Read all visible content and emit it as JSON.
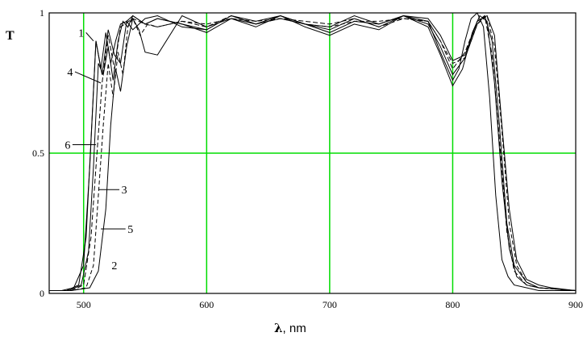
{
  "chart_data": {
    "type": "line",
    "title": "",
    "ylabel": "T",
    "xlabel_symbol": "λ",
    "xlabel_unit": ", nm",
    "xlim": [
      472,
      900
    ],
    "ylim": [
      0,
      1
    ],
    "x_ticks": [
      500,
      600,
      700,
      800,
      900
    ],
    "y_ticks": [
      0,
      0.5,
      1
    ],
    "y_tick_labels": [
      "0",
      "0.5",
      "1"
    ],
    "grid": true,
    "grid_color": "#00dd00",
    "line_color": "#000000",
    "series": [
      {
        "name": "1",
        "x": [
          472,
          482,
          492,
          500,
          505,
          510,
          515,
          520,
          525,
          530,
          535,
          540,
          550,
          560,
          570,
          580,
          600,
          620,
          640,
          660,
          680,
          700,
          720,
          740,
          760,
          780,
          790,
          800,
          805,
          810,
          815,
          820,
          825,
          830,
          835,
          840,
          845,
          850,
          860,
          870,
          880,
          900
        ],
        "y": [
          0.01,
          0.01,
          0.02,
          0.1,
          0.45,
          0.9,
          0.78,
          0.94,
          0.85,
          0.82,
          0.97,
          0.94,
          0.98,
          0.99,
          0.97,
          0.95,
          0.94,
          0.99,
          0.97,
          0.99,
          0.96,
          0.95,
          0.99,
          0.96,
          0.99,
          0.97,
          0.86,
          0.76,
          0.8,
          0.9,
          0.98,
          1.0,
          0.95,
          0.7,
          0.35,
          0.12,
          0.06,
          0.03,
          0.02,
          0.01,
          0.01,
          0.01
        ]
      },
      {
        "name": "2",
        "x": [
          472,
          490,
          505,
          512,
          518,
          522,
          526,
          530,
          535,
          540,
          545,
          550,
          560,
          580,
          600,
          620,
          640,
          660,
          680,
          700,
          720,
          740,
          760,
          780,
          790,
          800,
          810,
          820,
          828,
          834,
          840,
          846,
          852,
          860,
          870,
          880,
          900
        ],
        "y": [
          0.01,
          0.01,
          0.02,
          0.08,
          0.3,
          0.6,
          0.8,
          0.72,
          0.88,
          0.98,
          0.94,
          0.86,
          0.85,
          0.99,
          0.95,
          0.98,
          0.95,
          0.99,
          0.96,
          0.93,
          0.97,
          0.96,
          0.99,
          0.98,
          0.92,
          0.83,
          0.85,
          0.97,
          0.99,
          0.92,
          0.6,
          0.3,
          0.12,
          0.05,
          0.03,
          0.02,
          0.01
        ]
      },
      {
        "name": "3",
        "x": [
          472,
          490,
          500,
          506,
          510,
          515,
          520,
          525,
          530,
          540,
          550,
          560,
          580,
          600,
          620,
          640,
          660,
          680,
          700,
          720,
          740,
          760,
          780,
          790,
          800,
          810,
          820,
          826,
          832,
          838,
          844,
          850,
          860,
          870,
          900
        ],
        "y": [
          0.01,
          0.01,
          0.03,
          0.2,
          0.45,
          0.75,
          0.92,
          0.8,
          0.95,
          0.98,
          0.96,
          0.95,
          0.97,
          0.95,
          0.99,
          0.96,
          0.98,
          0.97,
          0.96,
          0.98,
          0.95,
          0.98,
          0.97,
          0.9,
          0.8,
          0.86,
          0.97,
          0.99,
          0.85,
          0.55,
          0.22,
          0.08,
          0.03,
          0.02,
          0.01
        ]
      },
      {
        "name": "4",
        "x": [
          472,
          488,
          498,
          504,
          508,
          512,
          516,
          520,
          524,
          528,
          532,
          536,
          540,
          550,
          560,
          580,
          600,
          620,
          640,
          660,
          680,
          700,
          720,
          740,
          760,
          780,
          790,
          800,
          810,
          820,
          826,
          832,
          838,
          844,
          850,
          860,
          870,
          900
        ],
        "y": [
          0.01,
          0.01,
          0.03,
          0.15,
          0.45,
          0.82,
          0.78,
          0.88,
          0.76,
          0.9,
          0.97,
          0.95,
          0.99,
          0.96,
          0.98,
          0.96,
          0.94,
          0.99,
          0.96,
          0.98,
          0.96,
          0.94,
          0.98,
          0.95,
          0.99,
          0.96,
          0.88,
          0.78,
          0.84,
          0.96,
          0.99,
          0.9,
          0.6,
          0.25,
          0.1,
          0.04,
          0.02,
          0.01
        ]
      },
      {
        "name": "5",
        "x": [
          472,
          490,
          502,
          508,
          512,
          516,
          520,
          524,
          528,
          532,
          536,
          540,
          546,
          552,
          560,
          580,
          600,
          620,
          640,
          660,
          680,
          700,
          720,
          740,
          760,
          780,
          790,
          800,
          810,
          820,
          828,
          834,
          840,
          846,
          852,
          860,
          870,
          900
        ],
        "y": [
          0.01,
          0.01,
          0.02,
          0.1,
          0.35,
          0.6,
          0.82,
          0.7,
          0.86,
          0.78,
          0.95,
          0.98,
          0.92,
          0.96,
          0.95,
          0.97,
          0.96,
          0.98,
          0.97,
          0.98,
          0.96,
          0.95,
          0.97,
          0.97,
          0.98,
          0.97,
          0.9,
          0.82,
          0.84,
          0.96,
          0.99,
          0.88,
          0.58,
          0.25,
          0.1,
          0.04,
          0.02,
          0.01
        ]
      },
      {
        "name": "6",
        "x": [
          472,
          486,
          496,
          502,
          506,
          510,
          514,
          518,
          522,
          526,
          530,
          535,
          540,
          550,
          560,
          580,
          600,
          620,
          640,
          660,
          680,
          700,
          720,
          740,
          760,
          780,
          790,
          800,
          808,
          816,
          822,
          828,
          834,
          840,
          846,
          852,
          860,
          870,
          900
        ],
        "y": [
          0.01,
          0.01,
          0.03,
          0.2,
          0.55,
          0.9,
          0.8,
          0.93,
          0.82,
          0.9,
          0.96,
          0.97,
          0.99,
          0.96,
          0.98,
          0.96,
          0.93,
          0.98,
          0.96,
          0.99,
          0.95,
          0.92,
          0.96,
          0.94,
          0.99,
          0.95,
          0.85,
          0.74,
          0.8,
          0.93,
          0.99,
          0.97,
          0.75,
          0.4,
          0.16,
          0.06,
          0.03,
          0.02,
          0.01
        ]
      }
    ],
    "annotations": [
      {
        "label": "1",
        "x": 498,
        "y": 0.93,
        "tx": 508,
        "ty": 0.9
      },
      {
        "label": "4",
        "x": 489,
        "y": 0.79,
        "tx": 514,
        "ty": 0.75
      },
      {
        "label": "6",
        "x": 487,
        "y": 0.53,
        "tx": 510,
        "ty": 0.53
      },
      {
        "label": "3",
        "x": 533,
        "y": 0.37,
        "tx": 512,
        "ty": 0.37
      },
      {
        "label": "5",
        "x": 538,
        "y": 0.23,
        "tx": 514,
        "ty": 0.23
      },
      {
        "label": "2",
        "x": 525,
        "y": 0.1,
        "tx": null,
        "ty": null
      }
    ]
  }
}
